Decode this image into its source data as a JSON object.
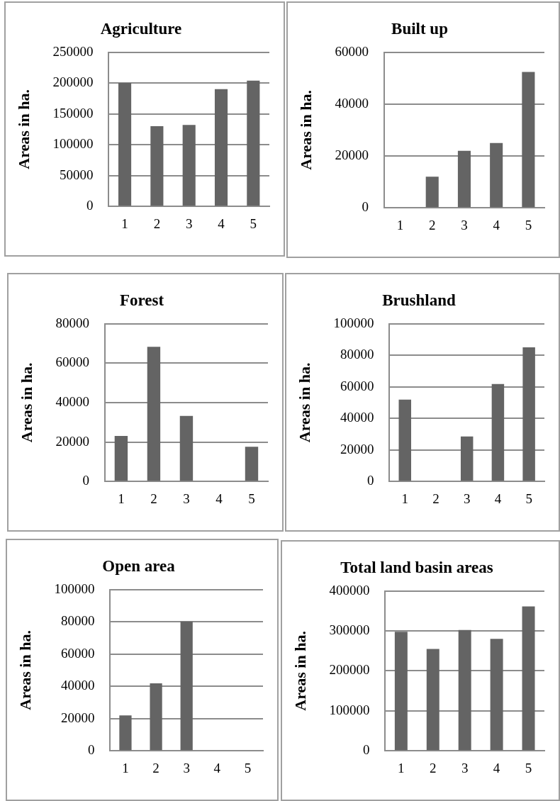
{
  "chart_data": [
    {
      "type": "bar",
      "title": "Agriculture",
      "ylabel": "Areas in ha.",
      "categories": [
        "1",
        "2",
        "3",
        "4",
        "5"
      ],
      "values": [
        200000,
        130000,
        132000,
        190000,
        204000
      ],
      "color": "#646464",
      "ylim": [
        0,
        250000
      ],
      "yticks": [
        0,
        50000,
        100000,
        150000,
        200000,
        250000
      ],
      "grid": "y"
    },
    {
      "type": "bar",
      "title": "Built up",
      "ylabel": "Areas in ha.",
      "categories": [
        "1",
        "2",
        "3",
        "4",
        "5"
      ],
      "values": [
        0,
        12000,
        22000,
        25000,
        52400
      ],
      "color": "#646464",
      "ylim": [
        0,
        60000
      ],
      "yticks": [
        0,
        20000,
        40000,
        60000
      ],
      "grid": "y"
    },
    {
      "type": "bar",
      "title": "Forest",
      "ylabel": "Areas in ha.",
      "categories": [
        "1",
        "2",
        "3",
        "4",
        "5"
      ],
      "values": [
        23100,
        68300,
        33200,
        0,
        17600
      ],
      "color": "#646464",
      "ylim": [
        0,
        80000
      ],
      "yticks": [
        0,
        20000,
        40000,
        60000,
        80000
      ],
      "grid": "y"
    },
    {
      "type": "bar",
      "title": "Brushland",
      "ylabel": "Areas in ha.",
      "categories": [
        "1",
        "2",
        "3",
        "4",
        "5"
      ],
      "values": [
        51900,
        0,
        28500,
        61800,
        85000
      ],
      "color": "#646464",
      "ylim": [
        0,
        100000
      ],
      "yticks": [
        0,
        20000,
        40000,
        60000,
        80000,
        100000
      ],
      "grid": "y"
    },
    {
      "type": "bar",
      "title": "Open area",
      "ylabel": "Areas in ha.",
      "categories": [
        "1",
        "2",
        "3",
        "4",
        "5"
      ],
      "values": [
        22000,
        41800,
        80200,
        0,
        0
      ],
      "color": "#646464",
      "ylim": [
        0,
        100000
      ],
      "yticks": [
        0,
        20000,
        40000,
        60000,
        80000,
        100000
      ],
      "grid": "y"
    },
    {
      "type": "bar",
      "title": "Total land basin areas",
      "ylabel": "Areas in ha.",
      "categories": [
        "1",
        "2",
        "3",
        "4",
        "5"
      ],
      "values": [
        298000,
        255000,
        302000,
        280000,
        361000
      ],
      "color": "#646464",
      "ylim": [
        0,
        400000
      ],
      "yticks": [
        0,
        100000,
        200000,
        300000,
        400000
      ],
      "grid": "y"
    }
  ]
}
